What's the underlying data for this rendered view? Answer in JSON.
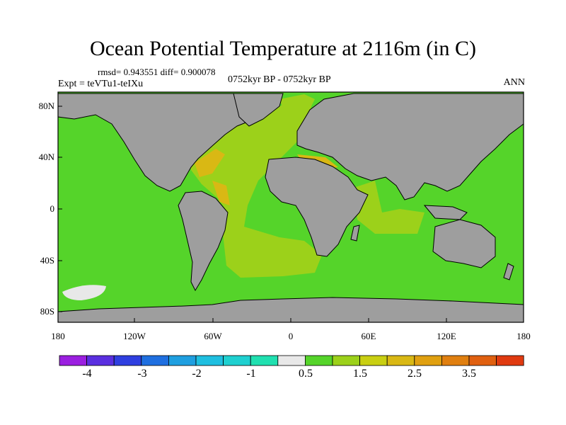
{
  "title": "Ocean Potential Temperature at 2116m (in C)",
  "stats": "rmsd= 0.943551 diff= 0.900078",
  "experiment": "Expt = teVTu1-teIXu",
  "period": "0752kyr BP - 0752kyr BP",
  "season": "ANN",
  "lat_ticks": [
    "80N",
    "40N",
    "0",
    "40S",
    "80S"
  ],
  "lon_ticks": [
    "180",
    "120W",
    "60W",
    "0",
    "60E",
    "120E",
    "180"
  ],
  "colorbar": {
    "colors": [
      "#9b1fe0",
      "#5a2fe0",
      "#2f3fe0",
      "#1f6fe0",
      "#1f9fe0",
      "#1fbfe0",
      "#1fd0d0",
      "#20e0b0",
      "#e8e8e8",
      "#55d42a",
      "#9cd11a",
      "#c9cf12",
      "#d9b814",
      "#e0a010",
      "#e07f10",
      "#e06010",
      "#e03a10"
    ],
    "labels": [
      "-4",
      "-3",
      "-2",
      "-1",
      "0.5",
      "1.5",
      "2.5",
      "3.5"
    ]
  },
  "map_colors": {
    "ocean": "#55d42a",
    "land": "#9e9e9e",
    "atlantic": "#9cd11a",
    "warm": "#d9b814",
    "cold": "#1fd0d0",
    "ice": "#e8e8e8"
  }
}
